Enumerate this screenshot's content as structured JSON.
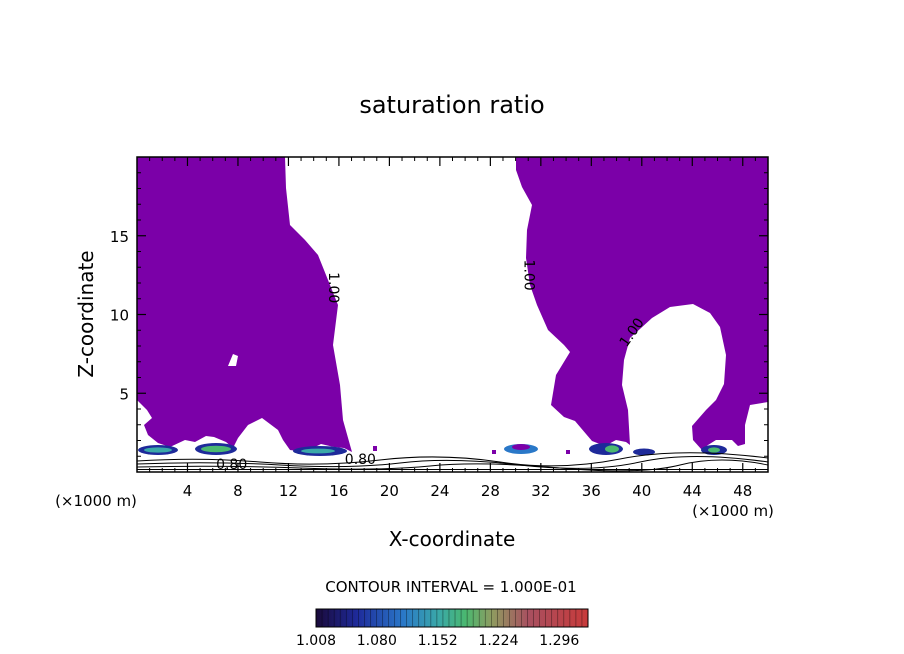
{
  "chart_data": {
    "type": "contour",
    "title": "saturation ratio",
    "xlabel": "X-coordinate",
    "ylabel": "Z-coordinate",
    "x_unit_label": "(×1000 m)",
    "x_unit_label_right": "(×1000 m)",
    "xlim": [
      0,
      50
    ],
    "ylim": [
      0,
      20
    ],
    "x_ticks": [
      4,
      8,
      12,
      16,
      20,
      24,
      28,
      32,
      36,
      40,
      44,
      48
    ],
    "y_ticks": [
      5,
      10,
      15
    ],
    "contour_interval_text": "CONTOUR INTERVAL = 1.000E-01",
    "contour_labels": [
      {
        "text": "1.00",
        "x": 15.2,
        "z": 11.7,
        "angle": 90
      },
      {
        "text": "1.00",
        "x": 30.7,
        "z": 12.5,
        "angle": 90
      },
      {
        "text": "1.00",
        "x": 39.5,
        "z": 8.7,
        "angle": -55
      },
      {
        "text": "0.80",
        "x": 7.5,
        "z": 0.2,
        "angle": 0
      },
      {
        "text": "0.80",
        "x": 17.7,
        "z": 0.5,
        "angle": 0
      }
    ],
    "colorbar": {
      "tick_labels": [
        "1.008",
        "1.080",
        "1.152",
        "1.224",
        "1.296"
      ],
      "min": 1.008,
      "max": 1.33
    },
    "colors": {
      "saturated_fill": "#7b00a8",
      "outline": "#000000",
      "background": "#ffffff"
    }
  }
}
